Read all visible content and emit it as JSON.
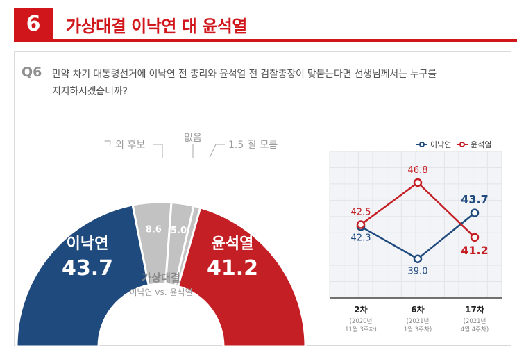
{
  "header": {
    "number": "6",
    "title": "가상대결 이낙연 대 윤석열"
  },
  "question": {
    "label": "Q6",
    "line1": "만약 차기 대통령선거에 이낙연 전 총리와 윤석열 전 검찰총장이 맞붙는다면 선생님께서는 누구를",
    "line2": "지지하시겠습니까?"
  },
  "colors": {
    "lee": "#1f4a7e",
    "yoon": "#c51f26",
    "other": "#c2c2c2",
    "accent": "#d0151b"
  },
  "chart_data": [
    {
      "type": "pie",
      "variant": "half-donut",
      "center_title": "가상대결",
      "center_subtitle": "이낙연 vs. 윤석열",
      "slices": [
        {
          "label": "이낙연",
          "value": 43.7,
          "value_text": "43.7",
          "color": "#1f4a7e"
        },
        {
          "label": "그 외 후보",
          "value": 8.6,
          "value_text": "8.6",
          "color": "#c2c2c2"
        },
        {
          "label": "없음",
          "value": 5.0,
          "value_text": "5.0",
          "color": "#c2c2c2"
        },
        {
          "label": "잘 모름",
          "value": 1.5,
          "value_text": "1.5",
          "color": "#c2c2c2"
        },
        {
          "label": "윤석열",
          "value": 41.2,
          "value_text": "41.2",
          "color": "#c51f26"
        }
      ]
    },
    {
      "type": "line",
      "categories": [
        "2차",
        "6차",
        "17차"
      ],
      "category_notes": [
        [
          "(2020년",
          "11월 3주차)"
        ],
        [
          "(2021년",
          "1월 3주차)"
        ],
        [
          "(2021년",
          "4월 4주차)"
        ]
      ],
      "series": [
        {
          "name": "이낙연",
          "values": [
            42.3,
            39.0,
            43.7
          ],
          "labels": [
            "42.3",
            "39.0",
            "43.7"
          ],
          "color": "#1f4a7e"
        },
        {
          "name": "윤석열",
          "values": [
            42.5,
            46.8,
            41.2
          ],
          "labels": [
            "42.5",
            "46.8",
            "41.2"
          ],
          "color": "#c51f26"
        }
      ],
      "ylim": [
        35,
        50
      ],
      "grid": true,
      "legend": "top-right"
    }
  ]
}
